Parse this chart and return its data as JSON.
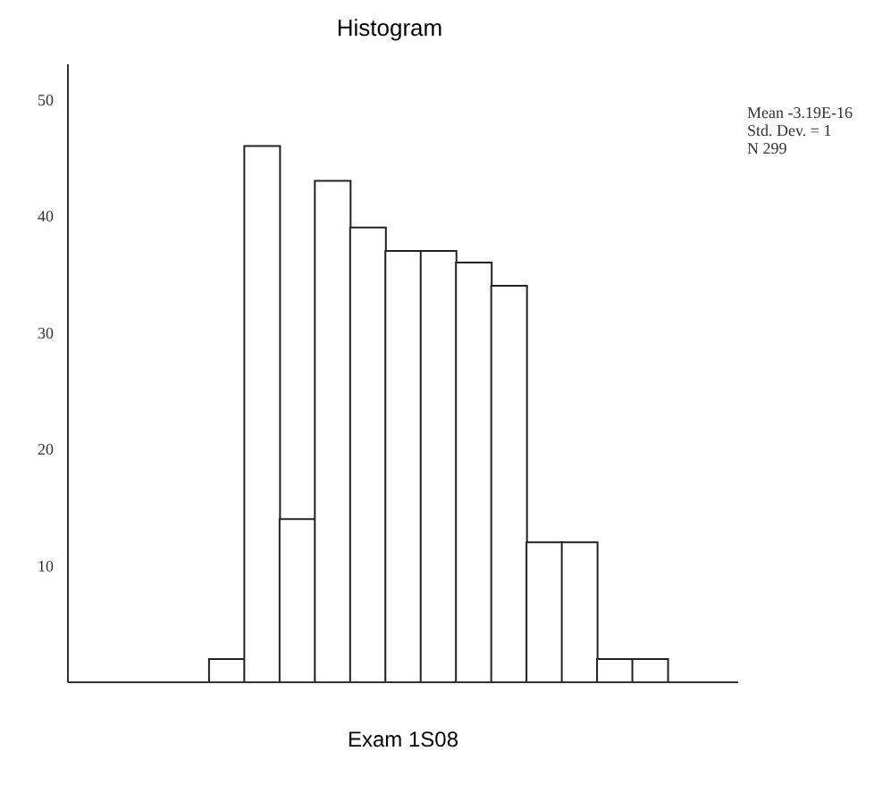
{
  "chart_data": {
    "type": "bar",
    "title": "Histogram",
    "xlabel": "Exam 1S08",
    "categories": [
      null,
      null,
      null,
      null,
      null,
      null,
      null,
      null,
      null,
      null,
      null,
      null,
      null,
      null,
      null,
      null,
      null,
      null,
      null
    ],
    "values": [
      null,
      null,
      null,
      null,
      2,
      46,
      14,
      43,
      39,
      37,
      37,
      36,
      34,
      12,
      12,
      2,
      2,
      null,
      null
    ],
    "color": "#ffffff",
    "ylim": [
      0,
      53
    ],
    "yticks": [
      10,
      20,
      30,
      40,
      50
    ],
    "annotations": [
      "Mean -3.19E-16",
      "Std. Dev. = 1",
      "N 299"
    ]
  }
}
